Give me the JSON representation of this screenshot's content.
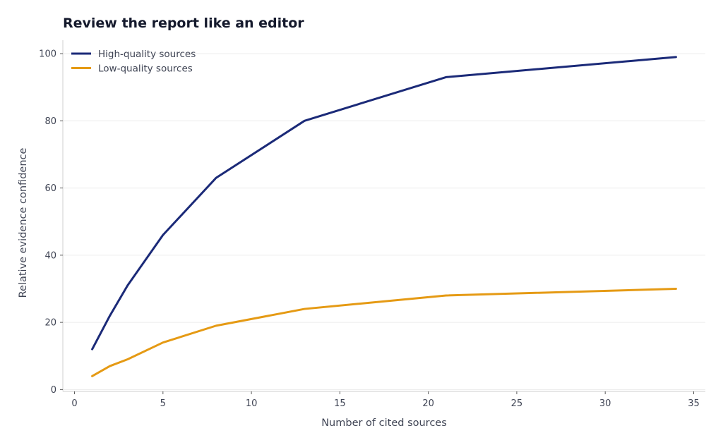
{
  "chart_data": {
    "type": "line",
    "title": "Review the report like an editor",
    "xlabel": "Number of cited sources",
    "ylabel": "Relative evidence confidence",
    "xlim": [
      -0.66,
      35.66
    ],
    "ylim": [
      -0.55,
      104.0
    ],
    "xticks": [
      0,
      5,
      10,
      15,
      20,
      25,
      30,
      35
    ],
    "yticks": [
      0,
      20,
      40,
      60,
      80,
      100
    ],
    "grid": "horizontal",
    "legend_position": "top-left",
    "series": [
      {
        "name": "High-quality sources",
        "color": "#1b2a78",
        "x": [
          1,
          2,
          3,
          5,
          8,
          13,
          21,
          34
        ],
        "y": [
          12,
          22,
          31,
          46,
          63,
          80,
          93,
          99
        ]
      },
      {
        "name": "Low-quality sources",
        "color": "#e59a14",
        "x": [
          1,
          2,
          3,
          5,
          8,
          13,
          21,
          34
        ],
        "y": [
          4,
          7,
          9,
          14,
          19,
          24,
          28,
          30
        ]
      }
    ]
  }
}
